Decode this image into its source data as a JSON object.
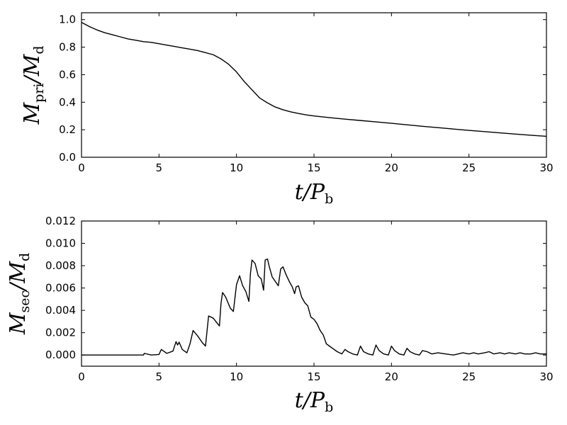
{
  "chart_data": [
    {
      "type": "line",
      "xlabel": {
        "main": "t/P",
        "sub": "b"
      },
      "ylabel": {
        "main": "M",
        "sub": "pri",
        "main2": "/M",
        "sub2": "d"
      },
      "xlim": [
        0,
        30
      ],
      "ylim": [
        0.0,
        1.05
      ],
      "xticks": [
        0,
        5,
        10,
        15,
        20,
        25,
        30
      ],
      "xtick_labels": [
        "0",
        "5",
        "10",
        "15",
        "20",
        "25",
        "30"
      ],
      "yticks": [
        0.0,
        0.2,
        0.4,
        0.6,
        0.8,
        1.0
      ],
      "ytick_labels": [
        "0.0",
        "0.2",
        "0.4",
        "0.6",
        "0.8",
        "1.0"
      ],
      "grid": false,
      "series": [
        {
          "x": [
            0,
            0.5,
            1,
            1.5,
            2,
            2.5,
            3,
            3.5,
            4,
            4.5,
            5,
            5.5,
            6,
            6.5,
            7,
            7.5,
            8,
            8.5,
            9,
            9.5,
            10,
            10.5,
            11,
            11.5,
            12,
            12.5,
            13,
            13.5,
            14,
            14.5,
            15,
            16,
            17,
            18,
            19,
            20,
            21,
            22,
            23,
            24,
            25,
            26,
            27,
            28,
            29,
            30
          ],
          "y": [
            0.98,
            0.95,
            0.925,
            0.905,
            0.89,
            0.875,
            0.86,
            0.85,
            0.84,
            0.835,
            0.825,
            0.815,
            0.805,
            0.795,
            0.785,
            0.775,
            0.76,
            0.745,
            0.715,
            0.675,
            0.62,
            0.55,
            0.49,
            0.43,
            0.395,
            0.365,
            0.345,
            0.33,
            0.318,
            0.308,
            0.3,
            0.288,
            0.277,
            0.267,
            0.257,
            0.247,
            0.236,
            0.225,
            0.215,
            0.205,
            0.195,
            0.186,
            0.177,
            0.168,
            0.16,
            0.152
          ]
        }
      ]
    },
    {
      "type": "line",
      "xlabel": {
        "main": "t/P",
        "sub": "b"
      },
      "ylabel": {
        "main": "M",
        "sub": "sec",
        "main2": "/M",
        "sub2": "d"
      },
      "xlim": [
        0,
        30
      ],
      "ylim": [
        -0.001,
        0.012
      ],
      "xticks": [
        0,
        5,
        10,
        15,
        20,
        25,
        30
      ],
      "xtick_labels": [
        "0",
        "5",
        "10",
        "15",
        "20",
        "25",
        "30"
      ],
      "yticks": [
        0.0,
        0.002,
        0.004,
        0.006,
        0.008,
        0.01,
        0.012
      ],
      "ytick_labels": [
        "0.000",
        "0.002",
        "0.004",
        "0.006",
        "0.008",
        "0.010",
        "0.012"
      ],
      "grid": false,
      "series": [
        {
          "x": [
            0,
            4.0,
            4.05,
            4.5,
            5.0,
            5.15,
            5.5,
            5.9,
            6.1,
            6.2,
            6.3,
            6.5,
            6.8,
            7.0,
            7.2,
            7.5,
            7.8,
            8.0,
            8.2,
            8.5,
            8.9,
            9.0,
            9.1,
            9.3,
            9.6,
            9.8,
            10.0,
            10.2,
            10.4,
            10.6,
            10.8,
            10.9,
            11.0,
            11.2,
            11.4,
            11.6,
            11.75,
            11.85,
            12.0,
            12.1,
            12.3,
            12.5,
            12.7,
            12.85,
            13.0,
            13.2,
            13.4,
            13.6,
            13.75,
            13.85,
            14.0,
            14.2,
            14.4,
            14.6,
            14.8,
            15.0,
            15.2,
            15.4,
            15.6,
            15.8,
            16.0,
            16.2,
            16.5,
            16.8,
            17.0,
            17.2,
            17.5,
            17.8,
            18.0,
            18.2,
            18.5,
            18.8,
            19.0,
            19.2,
            19.5,
            19.8,
            20.0,
            20.2,
            20.5,
            20.8,
            21.0,
            21.2,
            21.5,
            21.8,
            22.0,
            22.3,
            22.6,
            23.0,
            23.5,
            24.0,
            24.3,
            24.6,
            25.0,
            25.3,
            25.6,
            26.0,
            26.3,
            26.6,
            27.0,
            27.3,
            27.6,
            28.0,
            28.3,
            28.6,
            29.0,
            29.3,
            29.6,
            30.0
          ],
          "y": [
            0.0,
            0.0,
            0.00015,
            0.0,
            5e-05,
            0.0005,
            0.00015,
            0.00035,
            0.0012,
            0.0009,
            0.00115,
            0.0005,
            0.0002,
            0.001,
            0.0022,
            0.0017,
            0.0011,
            0.0008,
            0.0035,
            0.0033,
            0.0026,
            0.0046,
            0.0056,
            0.0052,
            0.0042,
            0.0039,
            0.0063,
            0.0071,
            0.0062,
            0.0057,
            0.0048,
            0.0073,
            0.0085,
            0.0082,
            0.0071,
            0.0068,
            0.0058,
            0.0085,
            0.0086,
            0.008,
            0.007,
            0.0066,
            0.0062,
            0.0077,
            0.0079,
            0.0072,
            0.0066,
            0.0061,
            0.0055,
            0.0061,
            0.0062,
            0.0052,
            0.0047,
            0.0044,
            0.0034,
            0.0032,
            0.0028,
            0.0022,
            0.0018,
            0.001,
            0.0008,
            0.0006,
            0.0003,
            0.0001,
            0.0005,
            0.0003,
            0.0001,
            0.0,
            0.0008,
            0.0003,
            0.0001,
            0.0,
            0.0009,
            0.0004,
            0.0001,
            0.0,
            0.0008,
            0.0004,
            0.0001,
            0.0,
            0.0006,
            0.0003,
            0.0001,
            0.0,
            0.0004,
            0.0003,
            0.0001,
            0.0002,
            0.0001,
            0.0,
            0.0001,
            0.0002,
            0.0001,
            0.0002,
            0.0001,
            0.0002,
            0.0003,
            0.0001,
            0.0002,
            0.0001,
            0.0002,
            0.0001,
            0.0002,
            0.0001,
            0.0001,
            0.0002,
            0.0001,
            0.0001
          ]
        }
      ]
    }
  ]
}
